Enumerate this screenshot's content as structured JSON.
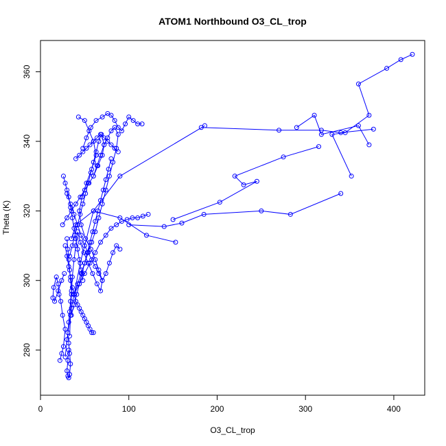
{
  "chart_data": {
    "type": "line",
    "title": "ATOM1 Northbound O3_CL_trop",
    "xlabel": "O3_CL_trop",
    "ylabel": "Theta (K)",
    "xlim": [
      0,
      435
    ],
    "ylim": [
      267,
      369
    ],
    "x_ticks": [
      0,
      100,
      200,
      300,
      400
    ],
    "y_ticks": [
      280,
      300,
      320,
      340,
      360
    ],
    "grid": false,
    "legend": "none",
    "color": "#0000FF",
    "marker": "open-circle",
    "series": [
      {
        "x": [
          421,
          408,
          392,
          360,
          372,
          345,
          330,
          352
        ],
        "y": [
          365,
          363.5,
          361,
          356.5,
          347.5,
          342.5,
          342,
          330
        ]
      },
      {
        "x": [
          377,
          340,
          318,
          270,
          182
        ],
        "y": [
          343.5,
          342.5,
          343.2,
          343.2,
          344
        ],
        "note_free": true
      },
      {
        "x": [
          372,
          360,
          318,
          310,
          290
        ],
        "y": [
          339,
          344.5,
          342,
          347.5,
          344
        ]
      },
      {
        "x": [
          186,
          90,
          60,
          45,
          35,
          30,
          28
        ],
        "y": [
          344.5,
          330,
          320,
          305,
          292,
          283,
          278
        ]
      },
      {
        "x": [
          315,
          275,
          220,
          230,
          245,
          203,
          150
        ],
        "y": [
          338.5,
          335.5,
          330,
          327.5,
          328.5,
          322.5,
          317.5
        ]
      },
      {
        "x": [
          340,
          283,
          250,
          185,
          160,
          140,
          100
        ],
        "y": [
          325,
          319,
          320,
          319,
          316.5,
          315.5,
          316
        ]
      },
      {
        "x": [
          153,
          120,
          90,
          60,
          40,
          35
        ],
        "y": [
          311,
          313,
          318,
          320,
          316,
          312
        ]
      },
      {
        "x": [
          43,
          50,
          55,
          60,
          63,
          58,
          52,
          47,
          44,
          46,
          51,
          57,
          62,
          66,
          70,
          68,
          64,
          59,
          54,
          49,
          45,
          42,
          40,
          38,
          36,
          35,
          34,
          33
        ],
        "y": [
          347,
          346,
          343,
          340,
          336,
          332,
          328,
          324,
          320,
          316,
          312,
          309,
          306,
          303,
          300,
          297,
          299,
          302,
          305,
          308,
          311,
          314,
          310,
          306,
          301,
          296,
          290,
          284
        ]
      },
      {
        "x": [
          32,
          31,
          30,
          31,
          32,
          33,
          34,
          33,
          32,
          31,
          32,
          33,
          34,
          35,
          34,
          33,
          32,
          31,
          30
        ],
        "y": [
          280,
          277,
          274,
          272.5,
          272,
          273,
          276,
          279,
          282,
          285,
          288,
          291,
          294,
          297,
          300,
          303,
          306,
          309,
          312
        ]
      },
      {
        "x": [
          22,
          24,
          26,
          28,
          25,
          23,
          21,
          20,
          18,
          15,
          14,
          16,
          20,
          24,
          27
        ],
        "y": [
          277,
          279,
          281,
          286,
          290,
          294,
          296,
          299,
          301,
          298,
          295,
          294,
          297,
          300,
          302
        ]
      },
      {
        "x": [
          25,
          30,
          35,
          40,
          45,
          50,
          55,
          60,
          65,
          70,
          72,
          69,
          66,
          63,
          60,
          57,
          54,
          51,
          48,
          45,
          42,
          39,
          36,
          33
        ],
        "y": [
          316,
          318,
          320,
          322,
          324,
          326,
          328,
          330,
          333,
          336,
          339,
          342,
          340,
          337,
          334,
          331,
          328,
          325,
          322,
          319,
          316,
          313,
          310,
          307
        ]
      },
      {
        "x": [
          48,
          52,
          57,
          63,
          70,
          76,
          80,
          84,
          88,
          92,
          96,
          100,
          105,
          110,
          115
        ],
        "y": [
          338,
          341,
          344,
          346,
          347,
          348,
          347.5,
          346,
          344,
          343,
          345,
          347,
          346,
          345,
          345
        ]
      },
      {
        "x": [
          60,
          64,
          68,
          72,
          76,
          80,
          84,
          88,
          86,
          82,
          78,
          74,
          70,
          66,
          62,
          58,
          54,
          50,
          46,
          42,
          38
        ],
        "y": [
          330,
          333,
          336,
          339,
          341,
          343,
          344,
          342,
          338,
          334,
          330,
          326,
          322,
          318,
          314,
          311,
          308,
          305,
          302,
          299,
          296
        ]
      },
      {
        "x": [
          38,
          44,
          50,
          56,
          62,
          68,
          74,
          80,
          86,
          92,
          98,
          104,
          110,
          116,
          122
        ],
        "y": [
          296,
          299,
          302,
          305,
          308,
          311,
          313,
          315,
          316,
          317,
          317.5,
          318,
          318,
          318.5,
          319
        ]
      },
      {
        "x": [
          28,
          30,
          32,
          34,
          36,
          38,
          40,
          42,
          44,
          46,
          48,
          50,
          52,
          54,
          56,
          58,
          60
        ],
        "y": [
          310,
          307,
          304,
          301,
          298,
          296,
          294,
          293,
          292,
          291,
          290,
          289,
          288,
          287,
          286,
          285,
          285
        ]
      },
      {
        "x": [
          30,
          34,
          38,
          42,
          46,
          50,
          54,
          58,
          62,
          66,
          70,
          74,
          78,
          82,
          86,
          90
        ],
        "y": [
          325,
          322,
          319,
          316,
          313,
          310,
          308,
          306,
          304,
          302,
          300,
          302,
          305,
          308,
          310,
          309
        ]
      },
      {
        "x": [
          26,
          28,
          30,
          32,
          34,
          36,
          38,
          40,
          42,
          44,
          46,
          48
        ],
        "y": [
          330,
          328,
          326,
          324,
          321,
          318,
          315,
          312,
          309,
          306,
          303,
          300
        ]
      },
      {
        "x": [
          40,
          44,
          48,
          52,
          56,
          60,
          64,
          68,
          72,
          76,
          80,
          84,
          88
        ],
        "y": [
          335,
          336,
          337,
          338,
          339,
          340,
          341,
          342,
          341,
          340,
          339,
          338,
          337
        ]
      },
      {
        "x": [
          35,
          38,
          41,
          44,
          47,
          50,
          53,
          56,
          59,
          62,
          65,
          68,
          71,
          74,
          77,
          80
        ],
        "y": [
          290,
          293,
          296,
          299,
          302,
          305,
          308,
          311,
          314,
          317,
          320,
          323,
          326,
          329,
          332,
          335
        ]
      }
    ]
  }
}
